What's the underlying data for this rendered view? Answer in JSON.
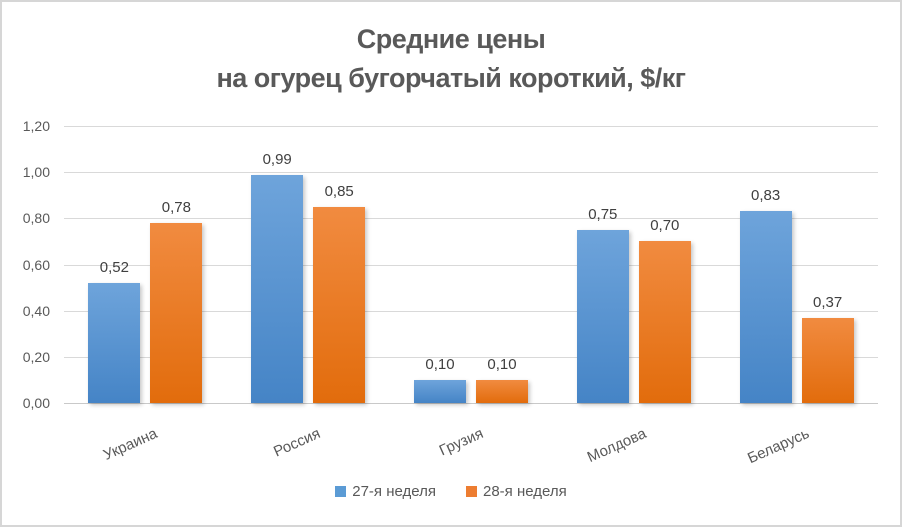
{
  "chart": {
    "title_line1": "Средние цены",
    "title_line2": "на огурец бугорчатый короткий, $/кг"
  },
  "chart_data": {
    "type": "bar",
    "title": "Средние цены на огурец бугорчатый короткий, $/кг",
    "categories": [
      "Украина",
      "Россия",
      "Грузия",
      "Молдова",
      "Беларусь"
    ],
    "series": [
      {
        "name": "27-я неделя",
        "color": "#5B9BD5",
        "gradient_top": "#6EA4DB",
        "gradient_bottom": "#4584C6",
        "values": [
          0.52,
          0.99,
          0.1,
          0.75,
          0.83
        ],
        "labels": [
          "0,52",
          "0,99",
          "0,10",
          "0,75",
          "0,83"
        ]
      },
      {
        "name": "28-я неделя",
        "color": "#ED7D31",
        "gradient_top": "#F18B40",
        "gradient_bottom": "#E26C0C",
        "values": [
          0.78,
          0.85,
          0.1,
          0.7,
          0.37
        ],
        "labels": [
          "0,78",
          "0,85",
          "0,10",
          "0,70",
          "0,37"
        ]
      }
    ],
    "y_axis": {
      "min": 0,
      "max": 1.2,
      "step": 0.2,
      "tick_labels": [
        "0,00",
        "0,20",
        "0,40",
        "0,60",
        "0,80",
        "1,00",
        "1,20"
      ]
    },
    "grid": true,
    "legend_position": "bottom",
    "colors": {
      "title_text": "#595959",
      "axis_text": "#595959",
      "value_label_text": "#404040",
      "gridline": "#d9d9d9",
      "border": "#d6d6d6"
    }
  }
}
